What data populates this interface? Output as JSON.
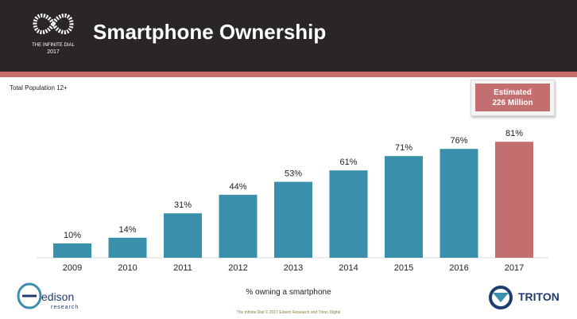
{
  "header": {
    "title": "Smartphone Ownership",
    "logo_line1": "THE INFINITE DIAL",
    "logo_line2": "2017"
  },
  "subtitle": "Total Population 12+",
  "callout": {
    "line1": "Estimated",
    "line2": "226 Million"
  },
  "colors": {
    "bar": "#3a8fab",
    "highlight": "#c46f6f",
    "header": "#2b2626",
    "rule": "#c96b6b"
  },
  "chart_data": {
    "type": "bar",
    "categories": [
      "2009",
      "2010",
      "2011",
      "2012",
      "2013",
      "2014",
      "2015",
      "2016",
      "2017"
    ],
    "values": [
      10,
      14,
      31,
      44,
      53,
      61,
      71,
      76,
      81
    ],
    "data_labels": [
      "10%",
      "14%",
      "31%",
      "44%",
      "53%",
      "61%",
      "71%",
      "76%",
      "81%"
    ],
    "highlight_category": "2017",
    "xlabel": "% owning a smartphone",
    "ylabel": "",
    "ylim": [
      0,
      100
    ]
  },
  "footer": "The Infinite Dial © 2017 Edison Research and Triton Digital",
  "logos": {
    "edison_word": "edison",
    "edison_sub": "research",
    "triton_word": "TRITON"
  }
}
